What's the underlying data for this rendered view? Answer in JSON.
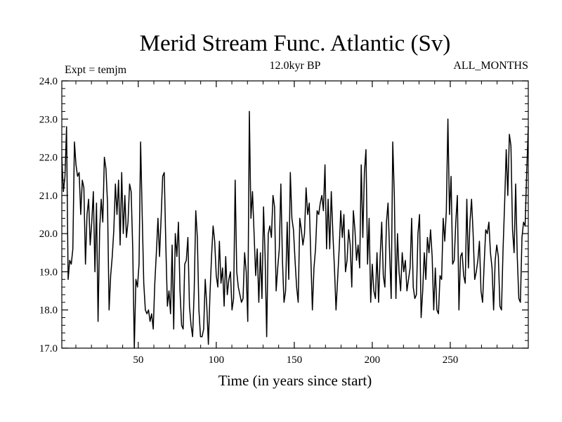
{
  "header": {
    "title": "Merid Stream Func. Atlantic (Sv)",
    "expt_label": "Expt = temjm",
    "period_label": "12.0kyr BP",
    "months_label": "ALL_MONTHS"
  },
  "chart_data": {
    "type": "line",
    "title": "Merid Stream Func. Atlantic (Sv)",
    "xlabel": "Time (in years since start)",
    "ylabel": "",
    "xlim": [
      1,
      300
    ],
    "ylim": [
      17.0,
      24.0
    ],
    "xticks": [
      50,
      100,
      150,
      200,
      250
    ],
    "yticks": [
      "17.0",
      "18.0",
      "19.0",
      "20.0",
      "21.0",
      "22.0",
      "23.0",
      "24.0"
    ],
    "grid": false,
    "line_color": "#000000",
    "series": [
      {
        "values": [
          22.0,
          21.1,
          21.5,
          22.8,
          18.8,
          19.3,
          19.2,
          19.6,
          22.4,
          21.8,
          21.5,
          21.6,
          20.5,
          21.4,
          21.2,
          19.2,
          20.5,
          20.9,
          19.7,
          20.3,
          21.1,
          19.0,
          20.8,
          17.7,
          20.1,
          20.9,
          20.3,
          22.0,
          21.7,
          20.8,
          18.0,
          18.9,
          19.4,
          20.1,
          21.3,
          20.5,
          21.4,
          19.7,
          21.6,
          20.0,
          21.0,
          19.9,
          20.3,
          21.3,
          21.1,
          19.6,
          17.0,
          18.8,
          18.6,
          19.2,
          22.4,
          20.5,
          18.7,
          18.0,
          17.9,
          18.0,
          17.7,
          17.9,
          17.5,
          18.7,
          19.5,
          20.4,
          19.4,
          20.4,
          21.5,
          21.6,
          19.7,
          18.1,
          18.5,
          17.9,
          19.7,
          17.5,
          20.0,
          19.4,
          20.3,
          18.5,
          17.6,
          17.5,
          19.2,
          19.3,
          19.9,
          18.1,
          17.6,
          17.3,
          18.5,
          20.6,
          19.9,
          18.0,
          17.3,
          17.3,
          17.5,
          18.8,
          18.1,
          17.1,
          18.4,
          19.4,
          20.2,
          19.8,
          18.9,
          18.6,
          19.8,
          18.7,
          19.1,
          18.1,
          19.4,
          18.4,
          18.8,
          19.0,
          18.0,
          18.3,
          21.4,
          19.0,
          18.6,
          18.4,
          18.2,
          18.3,
          19.5,
          19.0,
          17.7,
          23.2,
          20.4,
          21.1,
          20.0,
          18.9,
          19.6,
          18.2,
          19.5,
          18.3,
          20.7,
          19.4,
          17.3,
          20.0,
          20.2,
          19.9,
          21.0,
          20.7,
          18.5,
          19.1,
          19.6,
          21.3,
          19.3,
          18.2,
          18.5,
          20.3,
          18.8,
          21.6,
          20.4,
          20.1,
          19.3,
          18.6,
          18.2,
          20.4,
          20.1,
          19.7,
          20.0,
          21.2,
          20.5,
          20.8,
          19.4,
          18.0,
          19.1,
          19.6,
          20.6,
          20.5,
          20.8,
          21.0,
          20.6,
          21.8,
          19.6,
          20.9,
          19.6,
          21.1,
          20.0,
          19.1,
          18.0,
          18.8,
          19.6,
          20.6,
          19.9,
          20.5,
          19.0,
          19.3,
          20.1,
          19.7,
          18.6,
          20.6,
          20.1,
          19.3,
          19.7,
          19.1,
          21.8,
          19.9,
          21.6,
          22.2,
          19.2,
          20.4,
          18.2,
          19.2,
          18.5,
          18.3,
          19.5,
          18.2,
          19.4,
          20.3,
          18.9,
          18.6,
          20.3,
          20.8,
          19.5,
          18.3,
          22.4,
          21.0,
          18.3,
          20.0,
          19.0,
          18.5,
          19.5,
          19.0,
          19.3,
          18.5,
          18.8,
          19.1,
          20.4,
          18.6,
          18.3,
          18.4,
          20.0,
          20.5,
          17.8,
          18.5,
          19.5,
          18.8,
          19.9,
          19.5,
          20.1,
          19.4,
          18.0,
          19.1,
          18.0,
          17.9,
          18.9,
          18.8,
          20.4,
          19.8,
          20.6,
          23.0,
          20.5,
          21.5,
          19.2,
          19.3,
          20.3,
          21.0,
          18.0,
          19.4,
          19.5,
          18.9,
          18.7,
          20.9,
          19.1,
          20.3,
          20.9,
          20.0,
          18.8,
          19.0,
          19.3,
          19.8,
          18.5,
          18.2,
          19.2,
          20.1,
          20.0,
          20.3,
          19.5,
          19.1,
          18.0,
          19.3,
          19.7,
          19.4,
          18.1,
          18.0,
          19.6,
          20.8,
          22.2,
          21.0,
          22.6,
          22.3,
          20.1,
          19.5,
          21.3,
          19.4,
          18.3,
          18.2,
          19.9,
          20.3,
          20.2,
          21.6,
          22.8
        ]
      }
    ]
  }
}
